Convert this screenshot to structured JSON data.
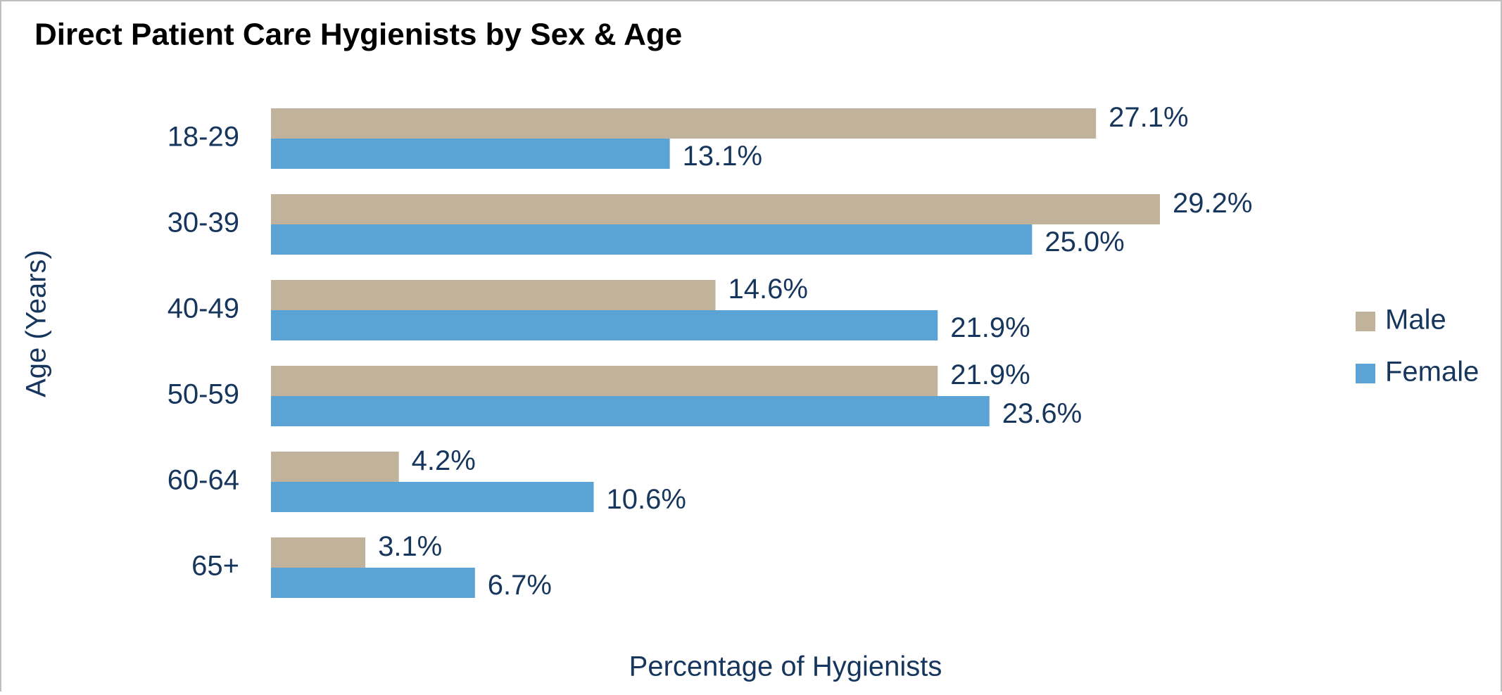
{
  "chart_data": {
    "type": "bar",
    "orientation": "horizontal",
    "title": "Direct Patient Care Hygienists by Sex & Age",
    "y_label": "Age (Years)",
    "x_label": "Percentage of Hygienists",
    "categories": [
      "18-29",
      "30-39",
      "40-49",
      "50-59",
      "60-64",
      "65+"
    ],
    "series": [
      {
        "name": "Male",
        "color": "#c0b29b",
        "values": [
          27.1,
          29.2,
          14.6,
          21.9,
          4.2,
          3.1
        ],
        "value_labels": [
          "27.1%",
          "29.2%",
          "14.6%",
          "21.9%",
          "4.2%",
          "3.1%"
        ]
      },
      {
        "name": "Female",
        "color": "#5ba3d5",
        "values": [
          13.1,
          25.0,
          21.9,
          23.6,
          10.6,
          6.7
        ],
        "value_labels": [
          "13.1%",
          "25.0%",
          "21.9%",
          "23.6%",
          "10.6%",
          "6.7%"
        ]
      }
    ],
    "legend": "right"
  }
}
